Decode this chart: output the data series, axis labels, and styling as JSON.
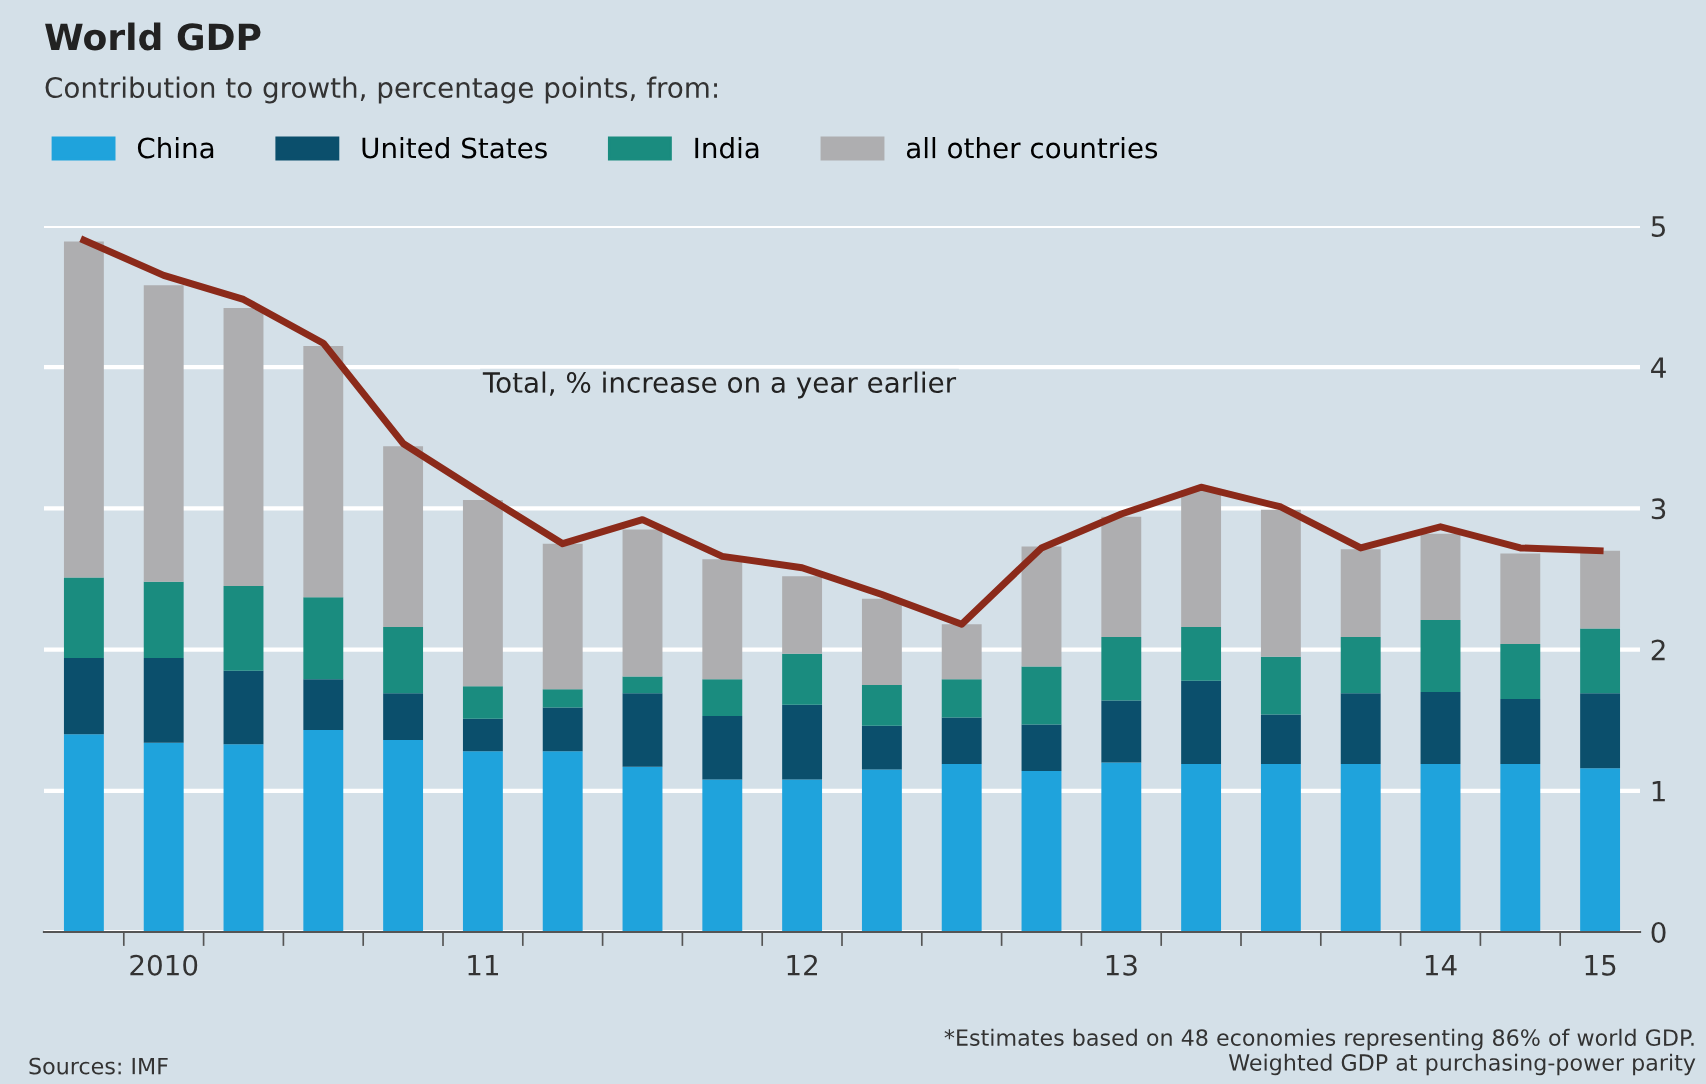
{
  "chart_data": {
    "type": "bar",
    "stacked": true,
    "title": "World GDP",
    "subtitle": "Contribution to growth, percentage points, from:",
    "categories": [
      null,
      "2010",
      null,
      null,
      null,
      "11",
      null,
      null,
      null,
      "12",
      null,
      null,
      null,
      "13",
      null,
      null,
      null,
      "14",
      null,
      "15"
    ],
    "series": [
      {
        "name": "China",
        "color": "#1fa3dc",
        "values": [
          1.4,
          1.34,
          1.33,
          1.43,
          1.36,
          1.28,
          1.28,
          1.17,
          1.08,
          1.08,
          1.15,
          1.19,
          1.14,
          1.2,
          1.19,
          1.19,
          1.19,
          1.19,
          1.19,
          1.16
        ]
      },
      {
        "name": "United States",
        "color": "#0b4f6c",
        "values": [
          0.54,
          0.6,
          0.52,
          0.36,
          0.33,
          0.23,
          0.31,
          0.52,
          0.45,
          0.53,
          0.31,
          0.33,
          0.33,
          0.44,
          0.59,
          0.35,
          0.5,
          0.51,
          0.46,
          0.53
        ]
      },
      {
        "name": "India",
        "color": "#1a8c7f",
        "values": [
          0.57,
          0.54,
          0.6,
          0.58,
          0.47,
          0.23,
          0.13,
          0.12,
          0.26,
          0.36,
          0.29,
          0.27,
          0.41,
          0.45,
          0.38,
          0.41,
          0.4,
          0.51,
          0.39,
          0.46
        ]
      },
      {
        "name": "all other countries",
        "color": "#aeaeb0",
        "values": [
          2.38,
          2.1,
          1.97,
          1.78,
          1.28,
          1.32,
          1.03,
          1.04,
          0.85,
          0.55,
          0.61,
          0.39,
          0.85,
          0.85,
          0.97,
          1.04,
          0.62,
          0.61,
          0.64,
          0.55
        ]
      },
      {
        "name": "Total, % increase on a year earlier",
        "type": "line",
        "color": "#8b2a1a",
        "values": [
          4.9,
          4.65,
          4.48,
          4.17,
          3.46,
          3.1,
          2.75,
          2.92,
          2.66,
          2.58,
          2.39,
          2.18,
          2.72,
          2.96,
          3.15,
          3.01,
          2.72,
          2.87,
          2.72,
          2.7
        ]
      }
    ],
    "ylim": [
      0,
      5
    ],
    "yticks": [
      0,
      1,
      2,
      3,
      4,
      5
    ],
    "grid": "y",
    "legend": "top left",
    "annotations": [
      "*Estimates based on 48 economies representing 86% of world GDP.\nWeighted GDP at purchasing-power parity",
      "Sources: IMF"
    ]
  }
}
